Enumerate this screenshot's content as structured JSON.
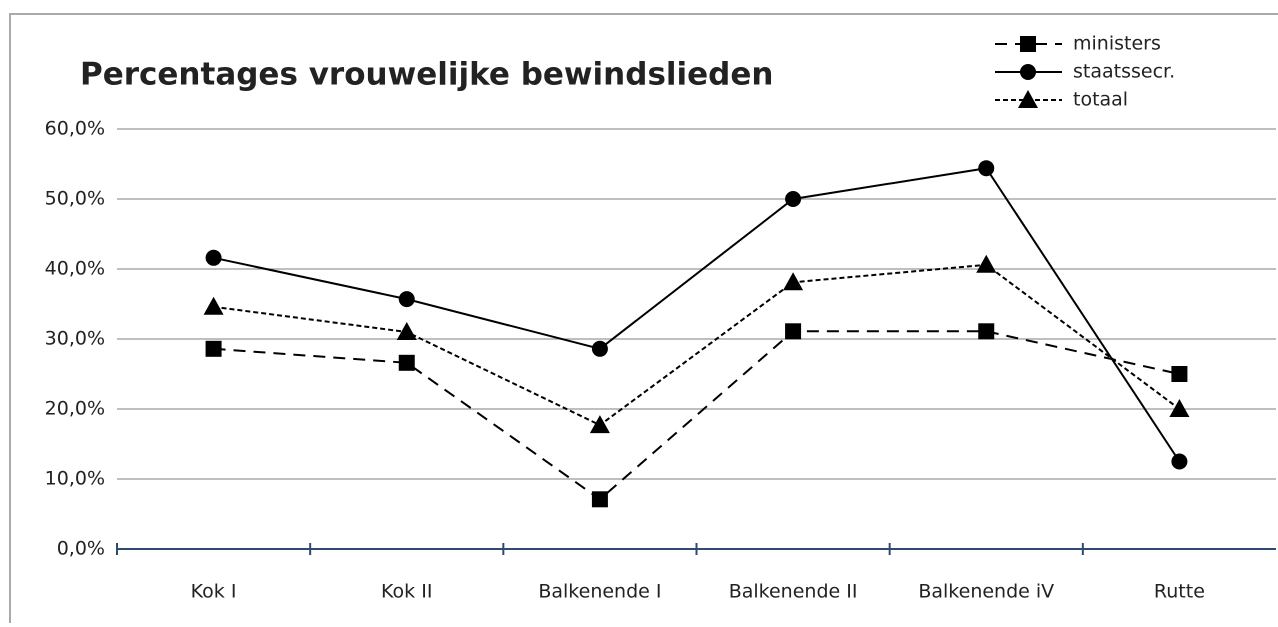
{
  "chart_data": {
    "type": "line",
    "title": "Percentages vrouwelijke bewindslieden",
    "categories": [
      "Kok I",
      "Kok II",
      "Balkenende I",
      "Balkenende II",
      "Balkenende iV",
      "Rutte"
    ],
    "series": [
      {
        "name": "ministers",
        "color": "#000000",
        "linestyle": "dashed",
        "marker": "square",
        "values": [
          28.6,
          26.6,
          7.1,
          31.1,
          31.1,
          25.0
        ]
      },
      {
        "name": "staatssecr.",
        "color": "#000000",
        "linestyle": "solid",
        "marker": "circle",
        "values": [
          41.6,
          35.7,
          28.6,
          50.0,
          54.4,
          12.5
        ]
      },
      {
        "name": "totaal",
        "color": "#000000",
        "linestyle": "dotted",
        "marker": "triangle",
        "values": [
          34.6,
          31.0,
          17.7,
          38.1,
          40.6,
          20.0
        ]
      }
    ],
    "ylim": [
      0,
      60
    ],
    "yticks": [
      {
        "value": 0,
        "label": "0,0%"
      },
      {
        "value": 10,
        "label": "10,0%"
      },
      {
        "value": 20,
        "label": "20,0%"
      },
      {
        "value": 30,
        "label": "30,0%"
      },
      {
        "value": 40,
        "label": "40,0%"
      },
      {
        "value": 50,
        "label": "50,0%"
      },
      {
        "value": 60,
        "label": "60,0%"
      }
    ],
    "grid": true,
    "legend": "top-right"
  }
}
